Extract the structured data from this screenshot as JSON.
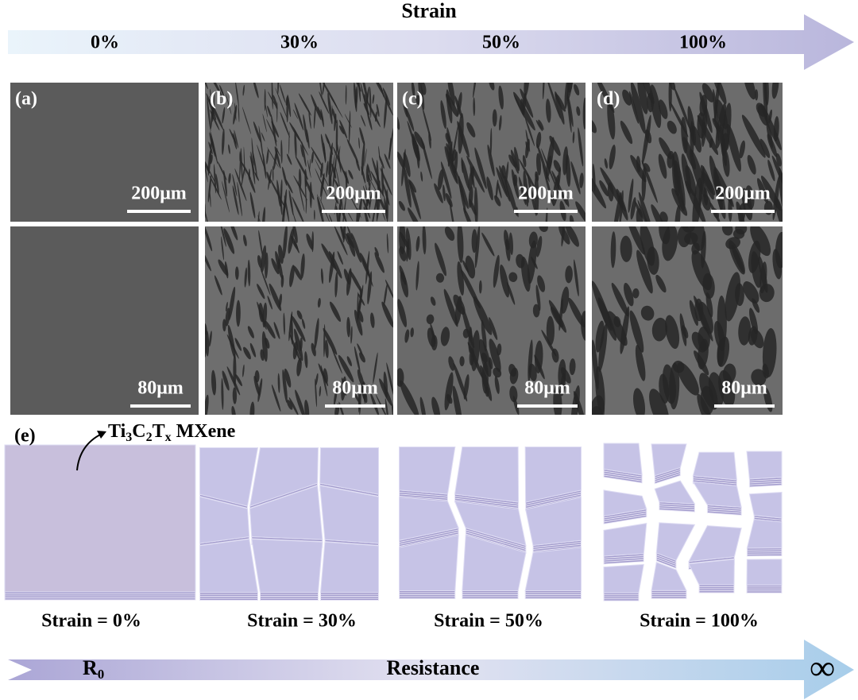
{
  "header": {
    "title": "Strain",
    "levels": [
      "0%",
      "30%",
      "50%",
      "100%"
    ]
  },
  "panels": [
    {
      "label": "(a)",
      "scale_top": "200μm",
      "scale_bottom": "80μm"
    },
    {
      "label": "(b)",
      "scale_top": "200μm",
      "scale_bottom": "80μm"
    },
    {
      "label": "(c)",
      "scale_top": "200μm",
      "scale_bottom": "80μm"
    },
    {
      "label": "(d)",
      "scale_top": "200μm",
      "scale_bottom": "80μm"
    }
  ],
  "schematic": {
    "label": "(e)",
    "material": [
      "Ti",
      "3",
      "C",
      "2",
      "T",
      "x",
      " MXene"
    ],
    "captions": [
      "Strain = 0%",
      "Strain = 30%",
      "Strain = 50%",
      "Strain = 100%"
    ]
  },
  "footer": {
    "start": [
      "R",
      "0"
    ],
    "title": "Resistance",
    "end": "∞"
  }
}
